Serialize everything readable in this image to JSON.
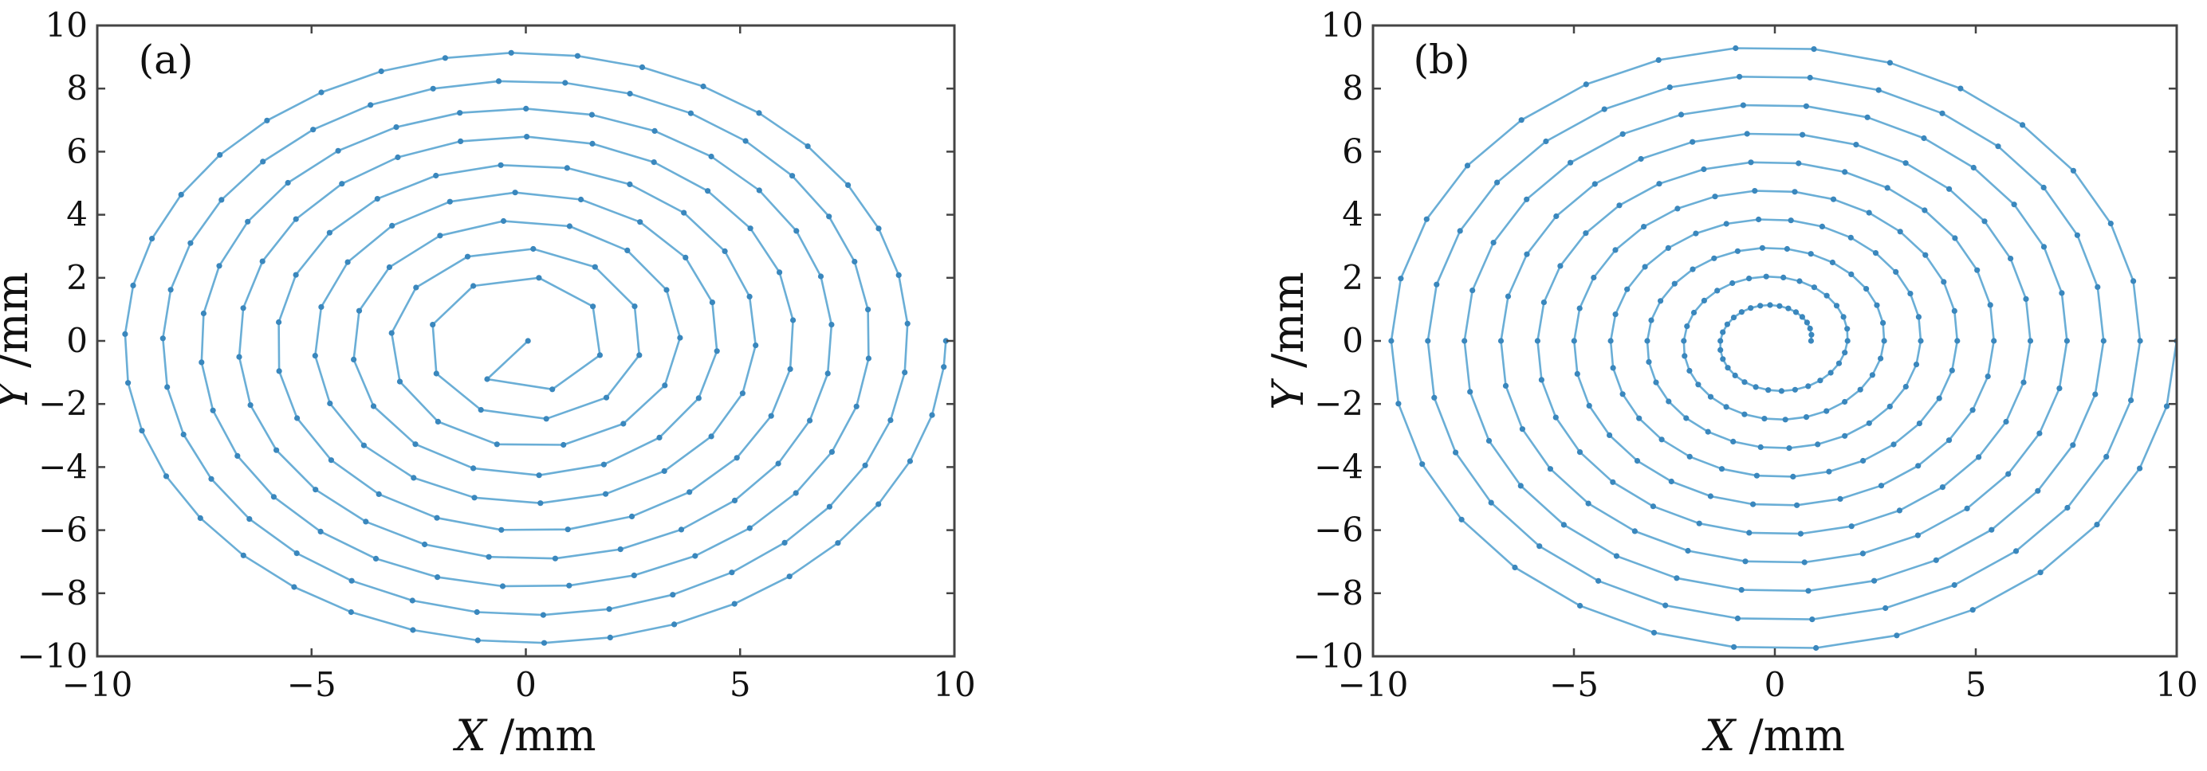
{
  "style": {
    "line_color": "#6aaed6",
    "marker_color": "#3a87bd",
    "frame_color": "#444444",
    "text_color": "#111111"
  },
  "chart_data": [
    {
      "type": "line",
      "panel_label": "(a)",
      "title": "",
      "xlabel": {
        "var": "X",
        "unit": " /mm"
      },
      "ylabel": {
        "var": "Y",
        "unit": " /mm"
      },
      "xlim": [
        -10,
        10
      ],
      "ylim": [
        -10,
        10
      ],
      "xticks": [
        -10,
        -5,
        0,
        5,
        10
      ],
      "yticks": [
        -10,
        -8,
        -6,
        -4,
        -2,
        0,
        2,
        4,
        6,
        8,
        10
      ],
      "xtick_labels": [
        "−10",
        "−5",
        "0",
        "5",
        "10"
      ],
      "ytick_labels": [
        "−10",
        "−8",
        "−6",
        "−4",
        "−2",
        "0",
        "2",
        "4",
        "6",
        "8",
        "10"
      ],
      "grid": false,
      "spiral": {
        "turns": 11,
        "outer_radius": 9.8,
        "center": [
          0,
          0
        ],
        "point_spacing": "constant arc length",
        "point_spacing_mm": 1.55,
        "inner_start_radius": 0.05
      }
    },
    {
      "type": "line",
      "panel_label": "(b)",
      "title": "",
      "xlabel": {
        "var": "X",
        "unit": " /mm"
      },
      "ylabel": {
        "var": "Y",
        "unit": " /mm"
      },
      "xlim": [
        -10,
        10
      ],
      "ylim": [
        -10,
        10
      ],
      "xticks": [
        -10,
        -5,
        0,
        5,
        10
      ],
      "yticks": [
        -10,
        -8,
        -6,
        -4,
        -2,
        0,
        2,
        4,
        6,
        8,
        10
      ],
      "xtick_labels": [
        "−10",
        "−5",
        "0",
        "5",
        "10"
      ],
      "ytick_labels": [
        "−10",
        "−8",
        "−6",
        "−4",
        "−2",
        "0",
        "2",
        "4",
        "6",
        "8",
        "10"
      ],
      "grid": false,
      "spiral": {
        "turns": 10,
        "outer_radius": 10.0,
        "center": [
          0,
          0
        ],
        "point_spacing": "constant angle",
        "points_per_turn": 30,
        "inner_start_radius": 0.9
      }
    }
  ]
}
